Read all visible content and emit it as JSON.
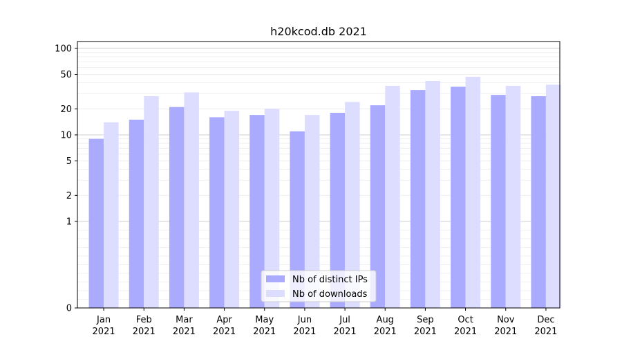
{
  "chart_data": {
    "type": "bar",
    "title": "h20kcod.db 2021",
    "xlabel": "",
    "ylabel": "",
    "y_scale": "symlog",
    "ylim": [
      0,
      120
    ],
    "y_ticks": [
      0,
      1,
      2,
      5,
      10,
      20,
      50,
      100
    ],
    "grid": true,
    "legend_position": "bottom-center",
    "categories": [
      [
        "Jan",
        "2021"
      ],
      [
        "Feb",
        "2021"
      ],
      [
        "Mar",
        "2021"
      ],
      [
        "Apr",
        "2021"
      ],
      [
        "May",
        "2021"
      ],
      [
        "Jun",
        "2021"
      ],
      [
        "Jul",
        "2021"
      ],
      [
        "Aug",
        "2021"
      ],
      [
        "Sep",
        "2021"
      ],
      [
        "Oct",
        "2021"
      ],
      [
        "Nov",
        "2021"
      ],
      [
        "Dec",
        "2021"
      ]
    ],
    "series": [
      {
        "name": "Nb of distinct IPs",
        "color": "#aaaaff",
        "values": [
          9,
          15,
          21,
          16,
          17,
          11,
          18,
          22,
          33,
          36,
          29,
          28
        ]
      },
      {
        "name": "Nb of downloads",
        "color": "#ddddff",
        "values": [
          14,
          28,
          31,
          19,
          20,
          17,
          24,
          37,
          42,
          47,
          37,
          38
        ]
      }
    ]
  }
}
